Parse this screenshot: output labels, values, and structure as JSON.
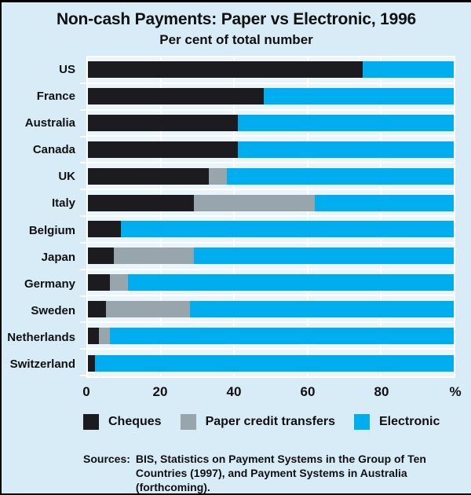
{
  "title": "Non-cash Payments: Paper vs Electronic, 1996",
  "subtitle": "Per cent of total number",
  "colors": {
    "background": "#d8ecf8",
    "plot_background": "#e9f4fb",
    "grid": "#ffffff",
    "cheques": "#1c1c20",
    "paper_credit_transfers": "#98a5ad",
    "electronic": "#00aeef"
  },
  "chart_data": {
    "type": "bar",
    "orientation": "horizontal",
    "stacked": true,
    "title": "Non-cash Payments: Paper vs Electronic, 1996",
    "subtitle": "Per cent of total number",
    "xlabel": "",
    "ylabel": "",
    "xlim": [
      0,
      100
    ],
    "x_ticks": [
      0,
      20,
      40,
      60,
      80
    ],
    "x_axis_unit_label": "%",
    "grid": "white vertical gridlines every 20, white row separators",
    "legend_position": "bottom",
    "categories": [
      "US",
      "France",
      "Australia",
      "Canada",
      "UK",
      "Italy",
      "Belgium",
      "Japan",
      "Germany",
      "Sweden",
      "Netherlands",
      "Switzerland"
    ],
    "series": [
      {
        "name": "Cheques",
        "color": "#1c1c20",
        "values": [
          75,
          48,
          41,
          41,
          33,
          29,
          9,
          7,
          6,
          5,
          3,
          2
        ]
      },
      {
        "name": "Paper credit transfers",
        "color": "#98a5ad",
        "values": [
          0,
          0,
          0,
          0,
          5,
          33,
          0,
          22,
          5,
          23,
          3,
          0
        ]
      },
      {
        "name": "Electronic",
        "color": "#00aeef",
        "values": [
          25,
          52,
          59,
          59,
          62,
          38,
          91,
          71,
          89,
          72,
          94,
          98
        ]
      }
    ]
  },
  "sources": {
    "label": "Sources:",
    "text": "BIS, Statistics on Payment Systems in the Group of Ten Countries (1997), and Payment Systems in Australia (forthcoming)."
  }
}
